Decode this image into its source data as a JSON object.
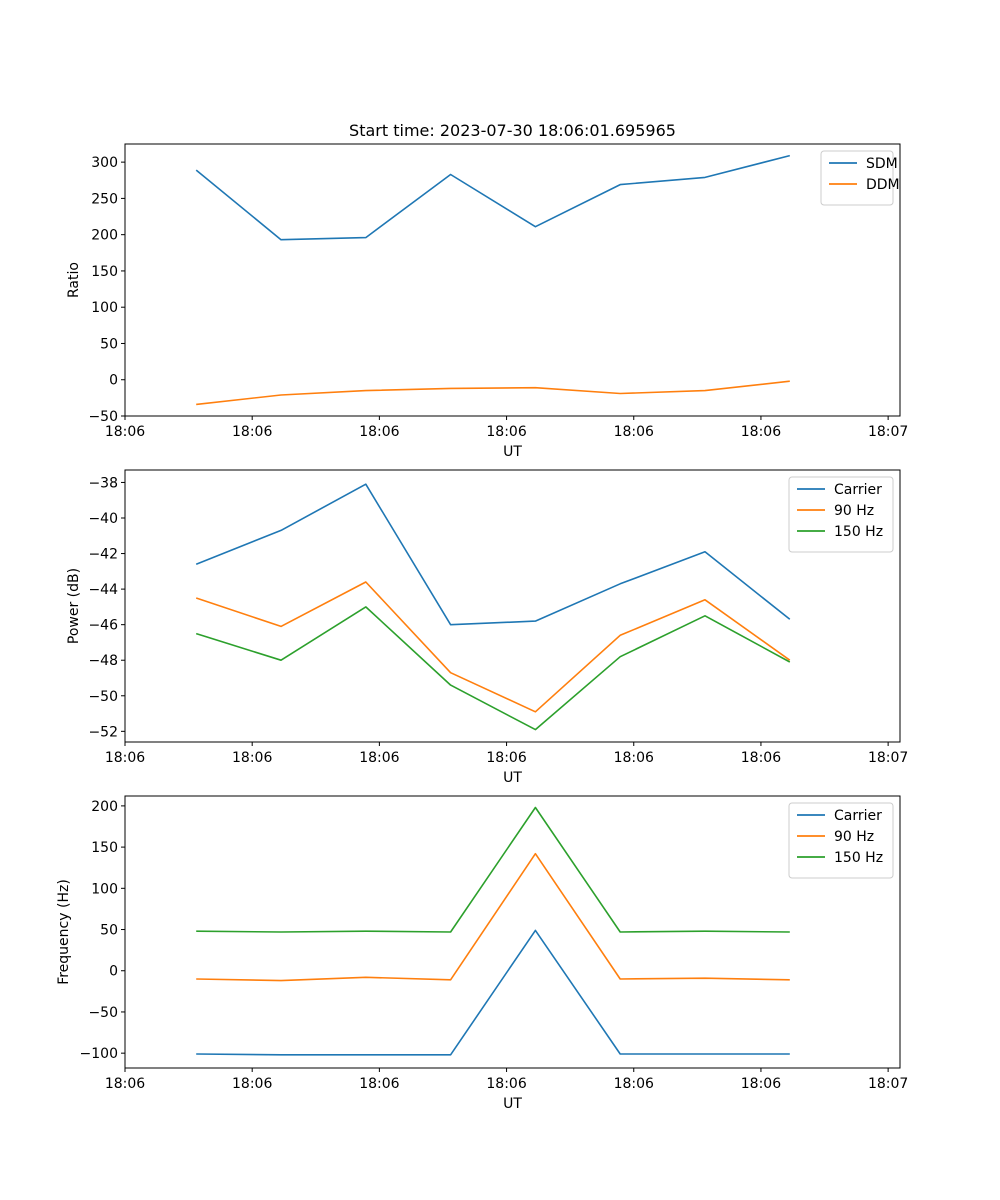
{
  "figure_title": "Start time: 2023-07-30 18:06:01.695965",
  "chart_data": [
    {
      "type": "line",
      "title": "Start time: 2023-07-30 18:06:01.695965",
      "xlabel": "UT",
      "ylabel": "Ratio",
      "x": [
        1,
        2,
        3,
        4,
        5,
        6,
        7,
        8
      ],
      "xlim": [
        0.16,
        9.3
      ],
      "ylim": [
        -50,
        325
      ],
      "yticks": [
        -50,
        0,
        50,
        100,
        150,
        200,
        250,
        300
      ],
      "ytick_labels": [
        "−50",
        "0",
        "50",
        "100",
        "150",
        "200",
        "250",
        "300"
      ],
      "xtick_positions": [
        0.16,
        1.66,
        3.16,
        4.66,
        6.16,
        7.66,
        9.16
      ],
      "xtick_labels": [
        "18:06",
        "18:06",
        "18:06",
        "18:06",
        "18:06",
        "18:06",
        "18:07"
      ],
      "legend_position": "top-right",
      "series": [
        {
          "name": "SDM",
          "color": "#1f77b4",
          "values": [
            289,
            193,
            196,
            283,
            211,
            269,
            279,
            309
          ]
        },
        {
          "name": "DDM",
          "color": "#ff7f0e",
          "values": [
            -34,
            -21,
            -15,
            -12,
            -11,
            -19,
            -15,
            -2
          ]
        }
      ]
    },
    {
      "type": "line",
      "xlabel": "UT",
      "ylabel": "Power (dB)",
      "x": [
        1,
        2,
        3,
        4,
        5,
        6,
        7,
        8
      ],
      "xlim": [
        0.16,
        9.3
      ],
      "ylim": [
        -52.6,
        -37.3
      ],
      "yticks": [
        -52,
        -50,
        -48,
        -46,
        -44,
        -42,
        -40,
        -38
      ],
      "ytick_labels": [
        "−52",
        "−50",
        "−48",
        "−46",
        "−44",
        "−42",
        "−40",
        "−38"
      ],
      "xtick_positions": [
        0.16,
        1.66,
        3.16,
        4.66,
        6.16,
        7.66,
        9.16
      ],
      "xtick_labels": [
        "18:06",
        "18:06",
        "18:06",
        "18:06",
        "18:06",
        "18:06",
        "18:07"
      ],
      "legend_position": "top-right",
      "series": [
        {
          "name": "Carrier",
          "color": "#1f77b4",
          "values": [
            -42.6,
            -40.7,
            -38.1,
            -46.0,
            -45.8,
            -43.7,
            -41.9,
            -45.7
          ]
        },
        {
          "name": "90 Hz",
          "color": "#ff7f0e",
          "values": [
            -44.5,
            -46.1,
            -43.6,
            -48.7,
            -50.9,
            -46.6,
            -44.6,
            -48.0
          ]
        },
        {
          "name": "150 Hz",
          "color": "#2ca02c",
          "values": [
            -46.5,
            -48.0,
            -45.0,
            -49.4,
            -51.9,
            -47.8,
            -45.5,
            -48.1
          ]
        }
      ]
    },
    {
      "type": "line",
      "xlabel": "UT",
      "ylabel": "Frequency (Hz)",
      "x": [
        1,
        2,
        3,
        4,
        5,
        6,
        7,
        8
      ],
      "xlim": [
        0.16,
        9.3
      ],
      "ylim": [
        -118,
        212
      ],
      "yticks": [
        -100,
        -50,
        0,
        50,
        100,
        150,
        200
      ],
      "ytick_labels": [
        "−100",
        "−50",
        "0",
        "50",
        "100",
        "150",
        "200"
      ],
      "xtick_positions": [
        0.16,
        1.66,
        3.16,
        4.66,
        6.16,
        7.66,
        9.16
      ],
      "xtick_labels": [
        "18:06",
        "18:06",
        "18:06",
        "18:06",
        "18:06",
        "18:06",
        "18:07"
      ],
      "legend_position": "top-right",
      "series": [
        {
          "name": "Carrier",
          "color": "#1f77b4",
          "values": [
            -101,
            -102,
            -102,
            -102,
            49,
            -101,
            -101,
            -101
          ]
        },
        {
          "name": "90 Hz",
          "color": "#ff7f0e",
          "values": [
            -10,
            -12,
            -8,
            -11,
            142,
            -10,
            -9,
            -11
          ]
        },
        {
          "name": "150 Hz",
          "color": "#2ca02c",
          "values": [
            48,
            47,
            48,
            47,
            198,
            47,
            48,
            47
          ]
        }
      ]
    }
  ]
}
